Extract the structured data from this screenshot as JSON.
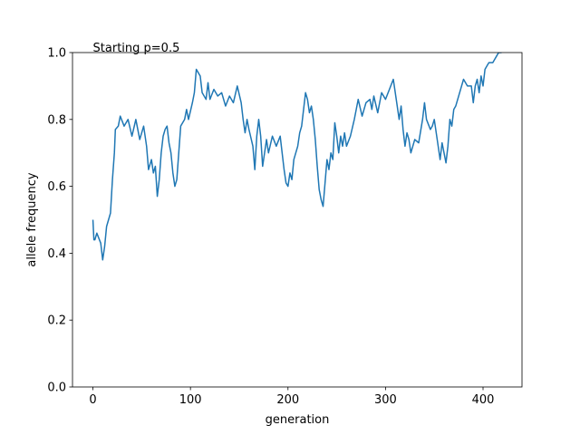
{
  "chart_data": {
    "type": "line",
    "annotation": "Starting p=0.5",
    "x_label": "generation",
    "y_label": "allele frequency",
    "x": [
      0,
      1,
      2,
      4,
      8,
      10,
      12,
      14,
      18,
      20,
      22,
      23,
      26,
      28,
      32,
      36,
      40,
      44,
      48,
      52,
      55,
      57,
      60,
      62,
      64,
      66,
      68,
      70,
      72,
      74,
      76,
      78,
      80,
      82,
      84,
      86,
      88,
      90,
      94,
      96,
      98,
      102,
      104,
      106,
      110,
      112,
      116,
      118,
      120,
      124,
      128,
      132,
      136,
      140,
      144,
      148,
      152,
      154,
      156,
      158,
      160,
      164,
      166,
      168,
      170,
      172,
      174,
      176,
      178,
      180,
      184,
      188,
      192,
      196,
      198,
      200,
      202,
      204,
      206,
      210,
      212,
      214,
      216,
      218,
      220,
      222,
      224,
      226,
      228,
      230,
      232,
      234,
      236,
      238,
      240,
      242,
      244,
      246,
      248,
      250,
      252,
      254,
      256,
      258,
      260,
      264,
      268,
      272,
      276,
      280,
      284,
      286,
      288,
      292,
      296,
      300,
      304,
      308,
      312,
      314,
      316,
      318,
      320,
      322,
      324,
      326,
      330,
      334,
      338,
      340,
      342,
      346,
      348,
      350,
      352,
      354,
      356,
      358,
      360,
      362,
      364,
      366,
      368,
      370,
      372,
      376,
      380,
      384,
      388,
      390,
      392,
      394,
      396,
      398,
      400,
      402,
      404,
      406,
      410,
      412,
      414,
      416,
      419
    ],
    "series": [
      {
        "color": "#1f77b4",
        "values": [
          0.5,
          0.44,
          0.44,
          0.46,
          0.43,
          0.38,
          0.42,
          0.48,
          0.52,
          0.62,
          0.7,
          0.77,
          0.78,
          0.81,
          0.78,
          0.8,
          0.75,
          0.8,
          0.74,
          0.78,
          0.72,
          0.65,
          0.68,
          0.64,
          0.66,
          0.57,
          0.62,
          0.7,
          0.75,
          0.77,
          0.78,
          0.73,
          0.7,
          0.64,
          0.6,
          0.62,
          0.7,
          0.78,
          0.8,
          0.83,
          0.8,
          0.85,
          0.88,
          0.95,
          0.93,
          0.88,
          0.86,
          0.91,
          0.86,
          0.89,
          0.87,
          0.88,
          0.84,
          0.87,
          0.85,
          0.9,
          0.85,
          0.8,
          0.76,
          0.8,
          0.77,
          0.72,
          0.65,
          0.75,
          0.8,
          0.75,
          0.66,
          0.7,
          0.74,
          0.7,
          0.75,
          0.72,
          0.75,
          0.65,
          0.61,
          0.6,
          0.64,
          0.62,
          0.68,
          0.72,
          0.76,
          0.78,
          0.83,
          0.88,
          0.86,
          0.82,
          0.84,
          0.8,
          0.74,
          0.66,
          0.59,
          0.56,
          0.54,
          0.61,
          0.68,
          0.65,
          0.7,
          0.68,
          0.79,
          0.75,
          0.7,
          0.75,
          0.72,
          0.76,
          0.72,
          0.75,
          0.8,
          0.86,
          0.81,
          0.85,
          0.86,
          0.83,
          0.87,
          0.82,
          0.88,
          0.86,
          0.89,
          0.92,
          0.84,
          0.8,
          0.84,
          0.77,
          0.72,
          0.76,
          0.74,
          0.7,
          0.74,
          0.73,
          0.8,
          0.85,
          0.8,
          0.77,
          0.78,
          0.8,
          0.76,
          0.72,
          0.68,
          0.73,
          0.7,
          0.67,
          0.72,
          0.8,
          0.78,
          0.83,
          0.84,
          0.88,
          0.92,
          0.9,
          0.9,
          0.85,
          0.9,
          0.92,
          0.88,
          0.93,
          0.9,
          0.95,
          0.96,
          0.97,
          0.97,
          0.98,
          0.99,
          1.0,
          1.0
        ]
      }
    ],
    "xlim": [
      -20.95,
      439.95
    ],
    "ylim": [
      0,
      1
    ],
    "xticks": [
      0,
      100,
      200,
      300,
      400
    ],
    "yticks": [
      {
        "value": 0,
        "label": "0.0"
      },
      0.2,
      0.4,
      0.6,
      0.8,
      {
        "value": 1,
        "label": "1.0"
      }
    ]
  }
}
